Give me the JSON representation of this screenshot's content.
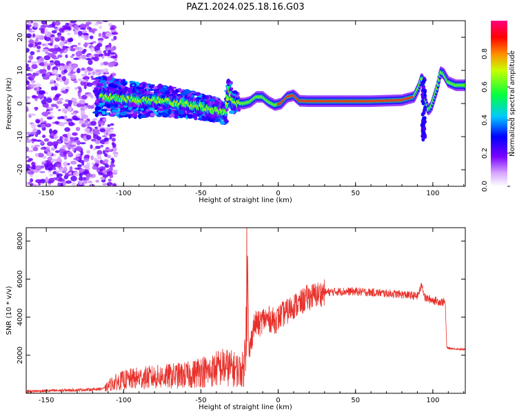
{
  "figure": {
    "title": "PAZ1.2024.025.18.16.G03"
  },
  "colors": {
    "snr_line": "#e8302a",
    "axis": "#000000"
  },
  "chart_data": [
    {
      "type": "heatmap",
      "xlabel": "Height of straight line (km)",
      "ylabel": "Frequency (Hz)",
      "xlim": [
        -163,
        121
      ],
      "ylim": [
        -25,
        25
      ],
      "xticks": [
        -150,
        -100,
        -50,
        0,
        50,
        100
      ],
      "yticks": [
        -20,
        -10,
        0,
        10,
        20
      ],
      "ridge": {
        "x": [
          -110,
          -100,
          -90,
          -80,
          -70,
          -60,
          -50,
          -40,
          -34,
          -32,
          -30,
          -26,
          -22,
          -18,
          -14,
          -10,
          -6,
          -2,
          2,
          6,
          10,
          14,
          20,
          40,
          60,
          80,
          88,
          91,
          93,
          95,
          97,
          99,
          101,
          103,
          105,
          107,
          110,
          115,
          121
        ],
        "y": [
          2.0,
          1.5,
          1.0,
          1.0,
          0.5,
          0.0,
          -1.0,
          -2.0,
          -3.0,
          5.0,
          0.5,
          0.0,
          0.0,
          0.5,
          2.0,
          2.0,
          0.5,
          -0.5,
          0.0,
          2.0,
          2.5,
          0.8,
          0.7,
          0.7,
          0.7,
          1.0,
          2.0,
          5.0,
          8.0,
          1.0,
          -2.0,
          -1.0,
          2.0,
          5.0,
          9.5,
          9.0,
          6.5,
          5.5,
          5.5
        ]
      },
      "colorbar": {
        "label": "Normalized spectral amplitude",
        "ticks": [
          "0.0",
          "0.2",
          "0.4",
          "0.6",
          "0.8"
        ],
        "range": [
          0,
          1
        ]
      }
    },
    {
      "type": "line",
      "xlabel": "Height of straight line (km)",
      "ylabel": "SNR (10 * v/v)",
      "xlim": [
        -163,
        121
      ],
      "ylim": [
        0,
        8700
      ],
      "xticks": [
        -150,
        -100,
        -50,
        0,
        50,
        100
      ],
      "yticks": [
        2000,
        4000,
        6000,
        8000
      ],
      "series": [
        {
          "x": [
            -163,
            -140,
            -120,
            -112,
            -108,
            -100,
            -90,
            -80,
            -70,
            -60,
            -55,
            -50,
            -45,
            -40,
            -35,
            -30,
            -25,
            -22,
            -21,
            -20,
            -19,
            -18,
            -16,
            -14,
            -12,
            -10,
            -6,
            -2,
            2,
            6,
            10,
            14,
            18,
            22,
            26,
            30,
            40,
            50,
            60,
            70,
            80,
            90,
            93,
            95,
            100,
            105,
            108,
            109,
            112,
            121
          ],
          "y": [
            100,
            150,
            200,
            250,
            500,
            700,
            800,
            850,
            900,
            950,
            1000,
            1200,
            1100,
            1300,
            1400,
            1300,
            1200,
            1300,
            4000,
            8300,
            2000,
            2500,
            3500,
            3700,
            3600,
            3900,
            3900,
            3800,
            4100,
            4300,
            4600,
            4700,
            5000,
            5100,
            5200,
            5300,
            5350,
            5350,
            5300,
            5250,
            5200,
            5100,
            5700,
            5000,
            4900,
            4800,
            4800,
            2400,
            2350,
            2300
          ]
        }
      ]
    }
  ]
}
